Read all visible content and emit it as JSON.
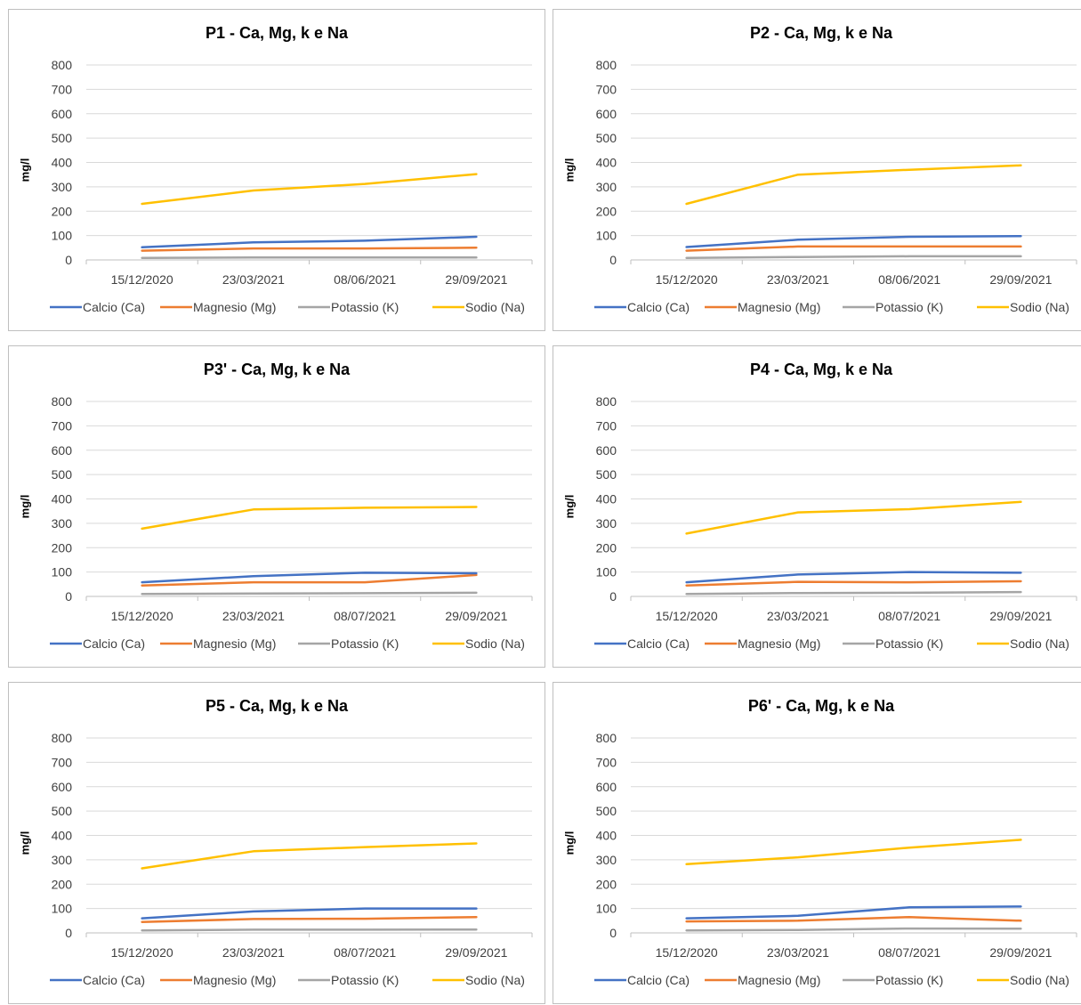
{
  "chart_data": [
    {
      "type": "line",
      "title": "P1 -  Ca, Mg, k e Na",
      "ylabel": "mg/l",
      "xlabel": "",
      "categories": [
        "15/12/2020",
        "23/03/2021",
        "08/06/2021",
        "29/09/2021"
      ],
      "ylim": [
        0,
        800
      ],
      "yticks": [
        0,
        100,
        200,
        300,
        400,
        500,
        600,
        700,
        800
      ],
      "grid": true,
      "legend": "bottom",
      "series": [
        {
          "name": "Calcio (Ca)",
          "color": "#4472C4",
          "values": [
            52,
            72,
            79,
            95
          ]
        },
        {
          "name": "Magnesio (Mg)",
          "color": "#ED7D31",
          "values": [
            38,
            47,
            47,
            50
          ]
        },
        {
          "name": "Potassio (K)",
          "color": "#A5A5A5",
          "values": [
            8,
            10,
            10,
            10
          ]
        },
        {
          "name": "Sodio (Na)",
          "color": "#FFC000",
          "values": [
            230,
            285,
            312,
            352
          ]
        }
      ]
    },
    {
      "type": "line",
      "title": "P2 -  Ca, Mg, k e Na",
      "ylabel": "mg/l",
      "xlabel": "",
      "categories": [
        "15/12/2020",
        "23/03/2021",
        "08/06/2021",
        "29/09/2021"
      ],
      "ylim": [
        0,
        800
      ],
      "yticks": [
        0,
        100,
        200,
        300,
        400,
        500,
        600,
        700,
        800
      ],
      "grid": true,
      "legend": "bottom",
      "series": [
        {
          "name": "Calcio (Ca)",
          "color": "#4472C4",
          "values": [
            53,
            83,
            95,
            98
          ]
        },
        {
          "name": "Magnesio (Mg)",
          "color": "#ED7D31",
          "values": [
            38,
            55,
            55,
            55
          ]
        },
        {
          "name": "Potassio (K)",
          "color": "#A5A5A5",
          "values": [
            8,
            12,
            15,
            15
          ]
        },
        {
          "name": "Sodio (Na)",
          "color": "#FFC000",
          "values": [
            230,
            350,
            370,
            388
          ]
        }
      ]
    },
    {
      "type": "line",
      "title": "P3' -  Ca, Mg, k e Na",
      "ylabel": "mg/l",
      "xlabel": "",
      "categories": [
        "15/12/2020",
        "23/03/2021",
        "08/07/2021",
        "29/09/2021"
      ],
      "ylim": [
        0,
        800
      ],
      "yticks": [
        0,
        100,
        200,
        300,
        400,
        500,
        600,
        700,
        800
      ],
      "grid": true,
      "legend": "bottom",
      "series": [
        {
          "name": "Calcio (Ca)",
          "color": "#4472C4",
          "values": [
            58,
            83,
            97,
            95
          ]
        },
        {
          "name": "Magnesio (Mg)",
          "color": "#ED7D31",
          "values": [
            45,
            58,
            58,
            88
          ]
        },
        {
          "name": "Potassio (K)",
          "color": "#A5A5A5",
          "values": [
            10,
            12,
            13,
            15
          ]
        },
        {
          "name": "Sodio (Na)",
          "color": "#FFC000",
          "values": [
            278,
            357,
            364,
            367
          ]
        }
      ]
    },
    {
      "type": "line",
      "title": "P4 -  Ca, Mg, k e Na",
      "ylabel": "mg/l",
      "xlabel": "",
      "categories": [
        "15/12/2020",
        "23/03/2021",
        "08/07/2021",
        "29/09/2021"
      ],
      "ylim": [
        0,
        800
      ],
      "yticks": [
        0,
        100,
        200,
        300,
        400,
        500,
        600,
        700,
        800
      ],
      "grid": true,
      "legend": "bottom",
      "series": [
        {
          "name": "Calcio (Ca)",
          "color": "#4472C4",
          "values": [
            58,
            90,
            100,
            97
          ]
        },
        {
          "name": "Magnesio (Mg)",
          "color": "#ED7D31",
          "values": [
            45,
            60,
            58,
            62
          ]
        },
        {
          "name": "Potassio (K)",
          "color": "#A5A5A5",
          "values": [
            10,
            14,
            15,
            18
          ]
        },
        {
          "name": "Sodio (Na)",
          "color": "#FFC000",
          "values": [
            258,
            345,
            358,
            388
          ]
        }
      ]
    },
    {
      "type": "line",
      "title": "P5 -  Ca, Mg, k e Na",
      "ylabel": "mg/l",
      "xlabel": "",
      "categories": [
        "15/12/2020",
        "23/03/2021",
        "08/07/2021",
        "29/09/2021"
      ],
      "ylim": [
        0,
        800
      ],
      "yticks": [
        0,
        100,
        200,
        300,
        400,
        500,
        600,
        700,
        800
      ],
      "grid": true,
      "legend": "bottom",
      "series": [
        {
          "name": "Calcio (Ca)",
          "color": "#4472C4",
          "values": [
            60,
            88,
            100,
            100
          ]
        },
        {
          "name": "Magnesio (Mg)",
          "color": "#ED7D31",
          "values": [
            45,
            57,
            58,
            65
          ]
        },
        {
          "name": "Potassio (K)",
          "color": "#A5A5A5",
          "values": [
            10,
            13,
            13,
            14
          ]
        },
        {
          "name": "Sodio (Na)",
          "color": "#FFC000",
          "values": [
            265,
            335,
            352,
            367
          ]
        }
      ]
    },
    {
      "type": "line",
      "title": "P6' -  Ca, Mg, k e Na",
      "ylabel": "mg/l",
      "xlabel": "",
      "categories": [
        "15/12/2020",
        "23/03/2021",
        "08/07/2021",
        "29/09/2021"
      ],
      "ylim": [
        0,
        800
      ],
      "yticks": [
        0,
        100,
        200,
        300,
        400,
        500,
        600,
        700,
        800
      ],
      "grid": true,
      "legend": "bottom",
      "series": [
        {
          "name": "Calcio (Ca)",
          "color": "#4472C4",
          "values": [
            60,
            70,
            105,
            108
          ]
        },
        {
          "name": "Magnesio (Mg)",
          "color": "#ED7D31",
          "values": [
            47,
            50,
            65,
            50
          ]
        },
        {
          "name": "Potassio (K)",
          "color": "#A5A5A5",
          "values": [
            10,
            12,
            18,
            17
          ]
        },
        {
          "name": "Sodio (Na)",
          "color": "#FFC000",
          "values": [
            282,
            310,
            350,
            382
          ]
        }
      ]
    }
  ]
}
